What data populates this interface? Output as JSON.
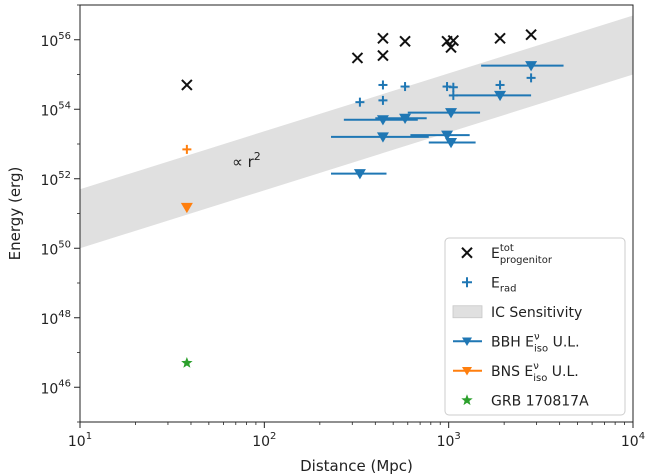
{
  "chart_data": {
    "type": "scatter",
    "xscale": "log",
    "yscale": "log",
    "xlabel": "Distance (Mpc)",
    "ylabel": "Energy (erg)",
    "xlim": [
      10,
      10000
    ],
    "ylim": [
      1e+45,
      1e+57
    ],
    "x_ticks": [
      {
        "value": 10,
        "base": "10",
        "exp": "1"
      },
      {
        "value": 100,
        "base": "10",
        "exp": "2"
      },
      {
        "value": 1000,
        "base": "10",
        "exp": "3"
      },
      {
        "value": 10000,
        "base": "10",
        "exp": "4"
      }
    ],
    "y_ticks": [
      {
        "value": 1e+46,
        "base": "10",
        "exp": "46"
      },
      {
        "value": 1e+48,
        "base": "10",
        "exp": "48"
      },
      {
        "value": 1e+50,
        "base": "10",
        "exp": "50"
      },
      {
        "value": 1e+52,
        "base": "10",
        "exp": "52"
      },
      {
        "value": 1e+54,
        "base": "10",
        "exp": "54"
      },
      {
        "value": 1e+56,
        "base": "10",
        "exp": "56"
      }
    ],
    "grid": false,
    "legend_position": "lower-right",
    "annotation": {
      "text": "∝ r",
      "sup": "2",
      "x": 80,
      "y": 3e+52
    },
    "band": {
      "name": "IC Sensitivity",
      "color": "#e0e0e0",
      "lower": [
        [
          10,
          1e+50
        ],
        [
          10000,
          1e+55
        ]
      ],
      "upper": [
        [
          10,
          5e+51
        ],
        [
          10000,
          5e+56
        ]
      ]
    },
    "series": [
      {
        "name": "E",
        "name_sup": "tot",
        "name_sub": "progenitor",
        "marker": "x",
        "color": "#111111",
        "points": [
          {
            "x": 38,
            "y": 5e+54
          },
          {
            "x": 320,
            "y": 3e+55
          },
          {
            "x": 440,
            "y": 1.1e+56
          },
          {
            "x": 440,
            "y": 3.5e+55
          },
          {
            "x": 580,
            "y": 9e+55
          },
          {
            "x": 980,
            "y": 9e+55
          },
          {
            "x": 1030,
            "y": 6e+55
          },
          {
            "x": 1060,
            "y": 9.5e+55
          },
          {
            "x": 1900,
            "y": 1.1e+56
          },
          {
            "x": 2800,
            "y": 1.4e+56
          }
        ]
      },
      {
        "name": "E",
        "name_sub": "rad",
        "marker": "plus",
        "color": "#1f77b4",
        "points": [
          {
            "x": 330,
            "y": 1.6e+54
          },
          {
            "x": 440,
            "y": 5e+54
          },
          {
            "x": 440,
            "y": 1.8e+54
          },
          {
            "x": 580,
            "y": 4.5e+54
          },
          {
            "x": 980,
            "y": 4.5e+54
          },
          {
            "x": 1060,
            "y": 4.3e+54
          },
          {
            "x": 1060,
            "y": 2.5e+54
          },
          {
            "x": 1900,
            "y": 5e+54
          },
          {
            "x": 2800,
            "y": 8e+54
          }
        ]
      },
      {
        "name": "E",
        "name_sub": "rad",
        "marker": "plus",
        "color": "#ff7f0e",
        "show_in_legend": false,
        "points": [
          {
            "x": 38,
            "y": 7e+52
          }
        ]
      },
      {
        "name": "BBH E",
        "name_sup": "ν",
        "name_sub": "iso",
        "name_tail": " U.L.",
        "marker": "triangle-down",
        "color": "#1f77b4",
        "points": [
          {
            "x": 330,
            "y": 1.4e+52,
            "xerr": [
              230,
              460
            ]
          },
          {
            "x": 440,
            "y": 1.6e+53,
            "xerr": [
              230,
              780
            ]
          },
          {
            "x": 440,
            "y": 5e+53,
            "xerr": [
              270,
              680
            ]
          },
          {
            "x": 580,
            "y": 5.5e+53,
            "xerr": [
              400,
              760
            ]
          },
          {
            "x": 980,
            "y": 1.8e+53,
            "xerr": [
              620,
              1300
            ]
          },
          {
            "x": 1030,
            "y": 1.1e+53,
            "xerr": [
              780,
              1400
            ]
          },
          {
            "x": 1030,
            "y": 8e+53,
            "xerr": [
              600,
              1480
            ]
          },
          {
            "x": 1900,
            "y": 2.5e+54,
            "xerr": [
              1100,
              2800
            ]
          },
          {
            "x": 2800,
            "y": 1.8e+55,
            "xerr": [
              1500,
              4200
            ]
          }
        ]
      },
      {
        "name": "BNS E",
        "name_sup": "ν",
        "name_sub": "iso",
        "name_tail": " U.L.",
        "marker": "triangle-down",
        "color": "#ff7f0e",
        "points": [
          {
            "x": 38,
            "y": 1.5e+51
          }
        ]
      },
      {
        "name": "GRB 170817A",
        "marker": "star",
        "color": "#2ca02c",
        "points": [
          {
            "x": 38,
            "y": 5e+46
          }
        ]
      }
    ]
  }
}
